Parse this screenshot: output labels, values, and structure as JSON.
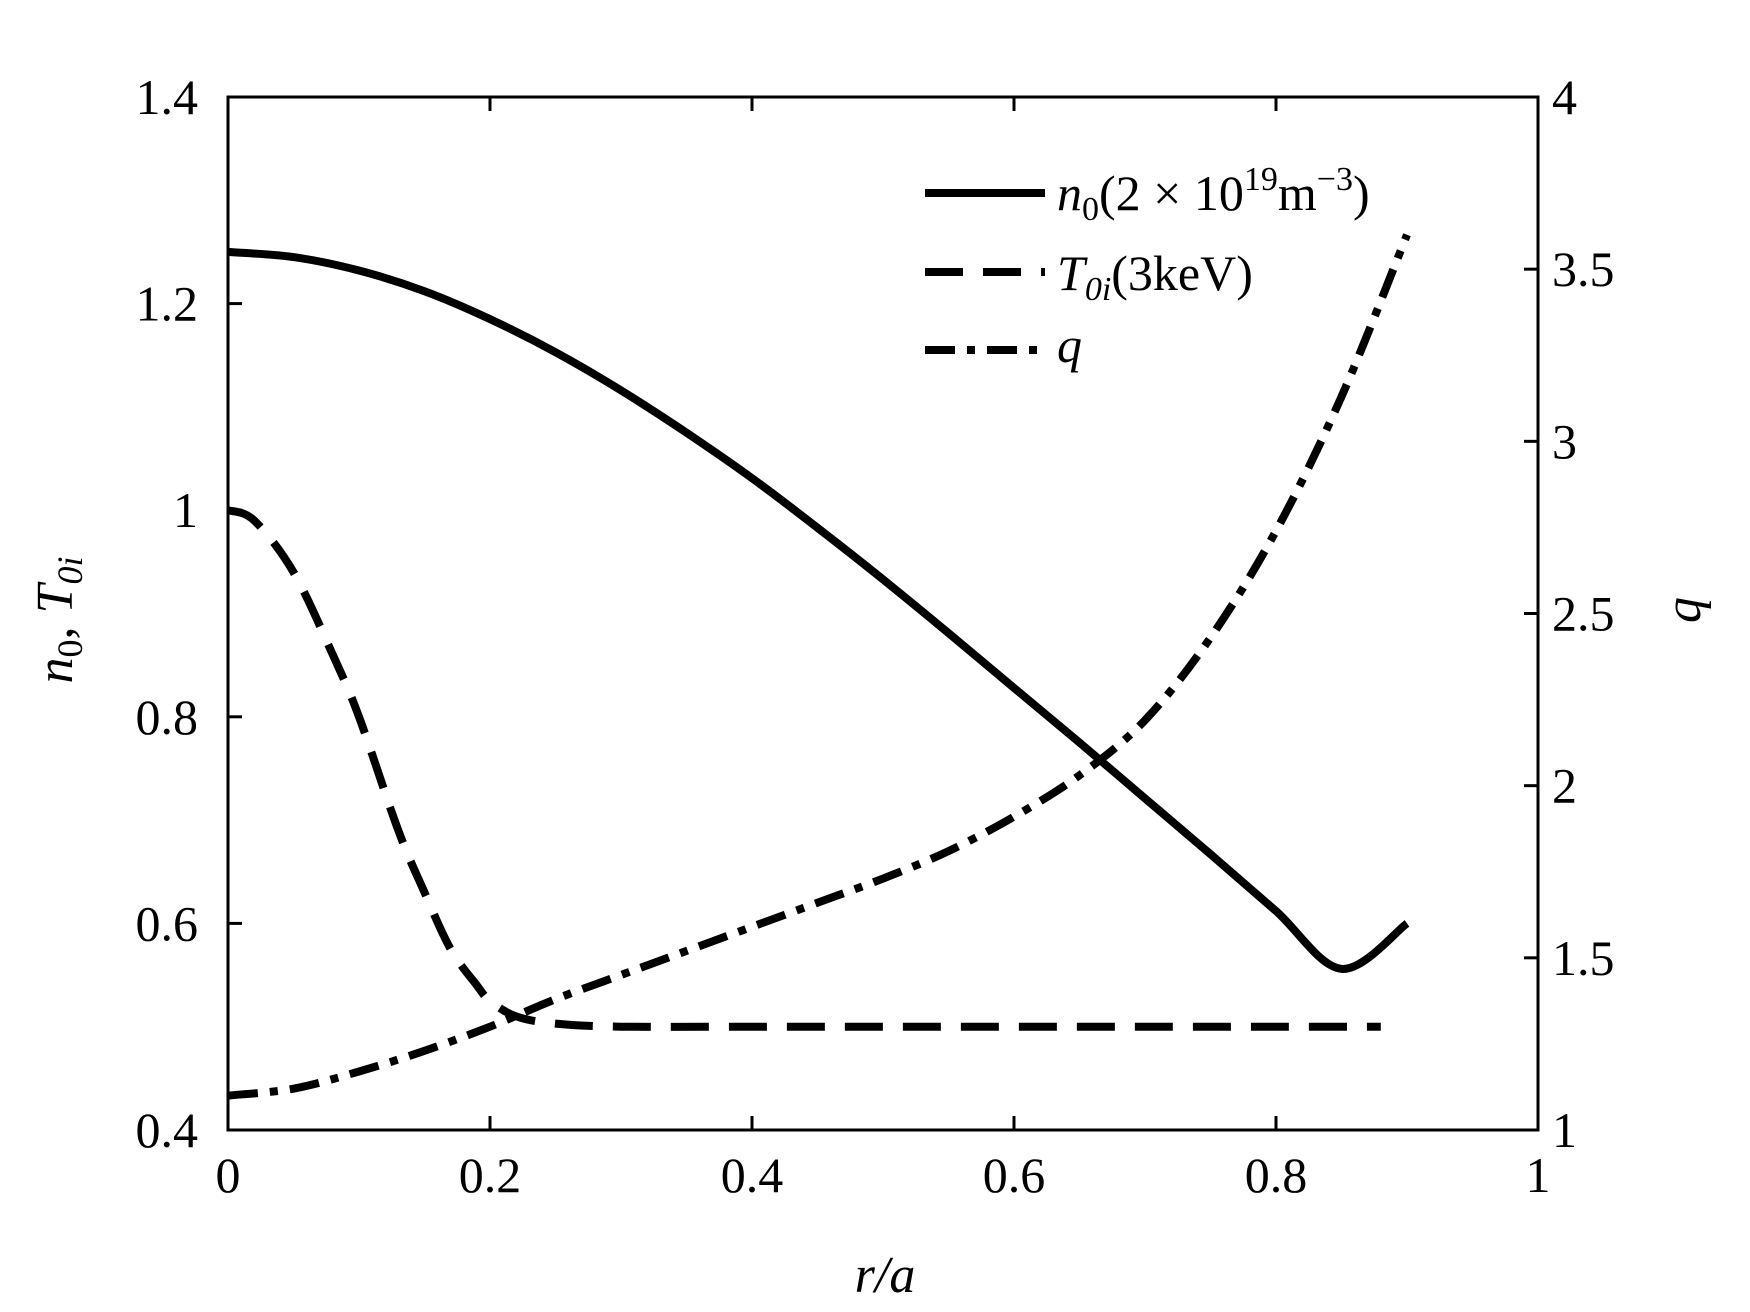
{
  "chart_data": {
    "type": "line",
    "title": "",
    "x": [
      0,
      0.05,
      0.1,
      0.15,
      0.2,
      0.25,
      0.3,
      0.35,
      0.4,
      0.45,
      0.5,
      0.55,
      0.6,
      0.65,
      0.7,
      0.75,
      0.8,
      0.85,
      0.9
    ],
    "xlabel": "r/a",
    "ylabel": "n0, T0i",
    "y2label": "q",
    "xlim": [
      0,
      1
    ],
    "ylim": [
      0.4,
      1.4
    ],
    "y2lim": [
      1,
      4
    ],
    "xticks": [
      "0",
      "0.2",
      "0.4",
      "0.6",
      "0.8",
      "1"
    ],
    "yticks": [
      "0.4",
      "0.6",
      "0.8",
      "1",
      "1.2",
      "1.4"
    ],
    "y2ticks": [
      "1",
      "1.5",
      "2",
      "2.5",
      "3",
      "3.5",
      "4"
    ],
    "legend_position": "top-right",
    "grid": false,
    "series": [
      {
        "name": "n0(2 × 10^19 m^-3)",
        "axis": "left",
        "style": "solid",
        "values": [
          1.25,
          1.245,
          1.232,
          1.212,
          1.185,
          1.153,
          1.116,
          1.075,
          1.031,
          0.983,
          0.933,
          0.881,
          0.828,
          0.775,
          0.721,
          0.667,
          0.612,
          0.556,
          0.6
        ]
      },
      {
        "name": "T0i(3keV)",
        "axis": "left",
        "style": "dashed",
        "x": [
          0,
          0.02,
          0.05,
          0.08,
          0.1,
          0.13,
          0.15,
          0.17,
          0.19,
          0.2,
          0.22,
          0.25,
          0.3,
          0.4,
          0.5,
          0.6,
          0.7,
          0.8,
          0.88
        ],
        "values": [
          1.0,
          0.99,
          0.94,
          0.86,
          0.8,
          0.69,
          0.63,
          0.575,
          0.54,
          0.525,
          0.51,
          0.503,
          0.5,
          0.5,
          0.5,
          0.5,
          0.5,
          0.5,
          0.5
        ]
      },
      {
        "name": "q",
        "axis": "right",
        "style": "dashdot",
        "x": [
          0,
          0.05,
          0.1,
          0.15,
          0.2,
          0.25,
          0.3,
          0.35,
          0.4,
          0.45,
          0.5,
          0.55,
          0.6,
          0.65,
          0.7,
          0.75,
          0.8,
          0.85,
          0.9
        ],
        "values": [
          1.1,
          1.12,
          1.17,
          1.23,
          1.3,
          1.38,
          1.45,
          1.52,
          1.59,
          1.66,
          1.73,
          1.81,
          1.91,
          2.03,
          2.19,
          2.43,
          2.74,
          3.13,
          3.6
        ]
      }
    ]
  },
  "legend": {
    "n0_main": "n",
    "n0_sub": "0",
    "n0_rest_a": "(2 × 10",
    "n0_sup": "19",
    "n0_rest_b": "m",
    "n0_sup2": "−3",
    "n0_close": ")",
    "t_main": "T",
    "t_sub": "0i",
    "t_rest": "(3keV)",
    "q_main": "q"
  },
  "axes": {
    "x_label": "r/a",
    "y_label_n": "n",
    "y_label_n_sub": "0",
    "y_label_comma": ", ",
    "y_label_t": "T",
    "y_label_t_sub": "0i",
    "y2_label": "q"
  }
}
